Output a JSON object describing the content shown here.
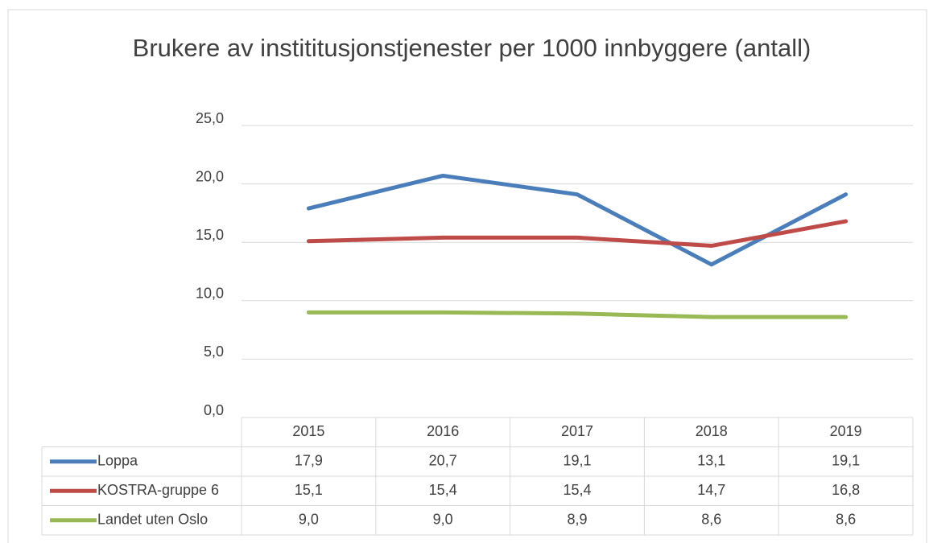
{
  "chart_data": {
    "type": "line",
    "title": "Brukere av instititusjonstjenester per 1000 innbyggere (antall)",
    "categories": [
      "2015",
      "2016",
      "2017",
      "2018",
      "2019"
    ],
    "series": [
      {
        "name": "Loppa",
        "color": "#4a7ebb",
        "values": [
          17.9,
          20.7,
          19.1,
          13.1,
          19.1
        ],
        "value_labels": [
          "17,9",
          "20,7",
          "19,1",
          "13,1",
          "19,1"
        ]
      },
      {
        "name": "KOSTRA-gruppe 6",
        "color": "#be4b48",
        "values": [
          15.1,
          15.4,
          15.4,
          14.7,
          16.8
        ],
        "value_labels": [
          "15,1",
          "15,4",
          "15,4",
          "14,7",
          "16,8"
        ]
      },
      {
        "name": "Landet uten Oslo",
        "color": "#98b954",
        "values": [
          9.0,
          9.0,
          8.9,
          8.6,
          8.6
        ],
        "value_labels": [
          "9,0",
          "9,0",
          "8,9",
          "8,6",
          "8,6"
        ]
      }
    ],
    "ylim": [
      0,
      25
    ],
    "yticks": [
      {
        "value": 0,
        "label": "0,0"
      },
      {
        "value": 5,
        "label": "5,0"
      },
      {
        "value": 10,
        "label": "10,0"
      },
      {
        "value": 15,
        "label": "15,0"
      },
      {
        "value": 20,
        "label": "20,0"
      },
      {
        "value": 25,
        "label": "25,0"
      }
    ],
    "grid": true,
    "data_table": true
  }
}
